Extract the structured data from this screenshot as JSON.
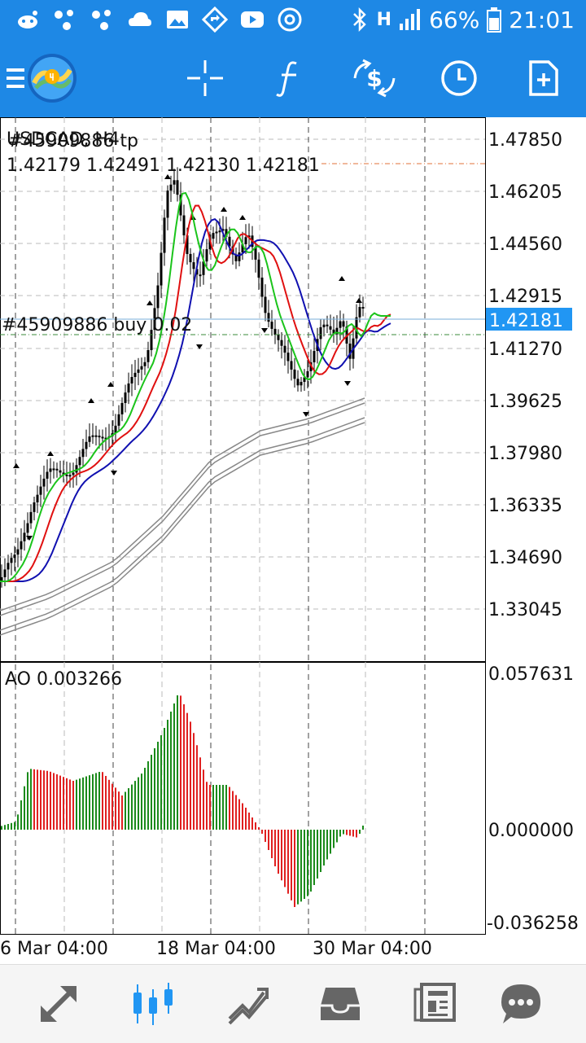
{
  "status_bar": {
    "battery": "66%",
    "time": "21:01",
    "signal": "H"
  },
  "toolbar": {
    "items": [
      "menu-icon",
      "mt4-logo",
      "crosshair-icon",
      "indicators-icon",
      "trade-currency-icon",
      "timeframe-clock-icon",
      "new-order-icon"
    ]
  },
  "chart": {
    "symbol": "USDCAD, H4",
    "order_label_top": "#45909886 tp",
    "ohlc": "1.42179 1.42491 1.42130 1.42181",
    "order_line_label": "#45909886 buy 0.02",
    "current_price": "1.42181",
    "price_ticks": [
      "1.47850",
      "1.46205",
      "1.44560",
      "1.42915",
      "1.41270",
      "1.39625",
      "1.37980",
      "1.36335",
      "1.34690",
      "1.33045"
    ],
    "time_ticks": [
      "6 Mar 04:00",
      "18 Mar 04:00",
      "30 Mar 04:00"
    ],
    "colors": {
      "ma_fast": "#1bc41b",
      "ma_mid": "#e01010",
      "ma_slow": "#1010b0",
      "envelope": "#888888",
      "current_price_bg": "#2196f3",
      "ao_up": "#1a8a1a",
      "ao_down": "#e02020"
    }
  },
  "ao": {
    "label": "AO 0.003266",
    "ticks": [
      "0.057631",
      "0.000000",
      "-0.036258"
    ]
  },
  "bottom_nav": {
    "items": [
      "quotes-icon",
      "chart-icon",
      "trade-icon",
      "history-icon",
      "news-icon",
      "chat-icon"
    ],
    "active": "chart-icon"
  }
}
